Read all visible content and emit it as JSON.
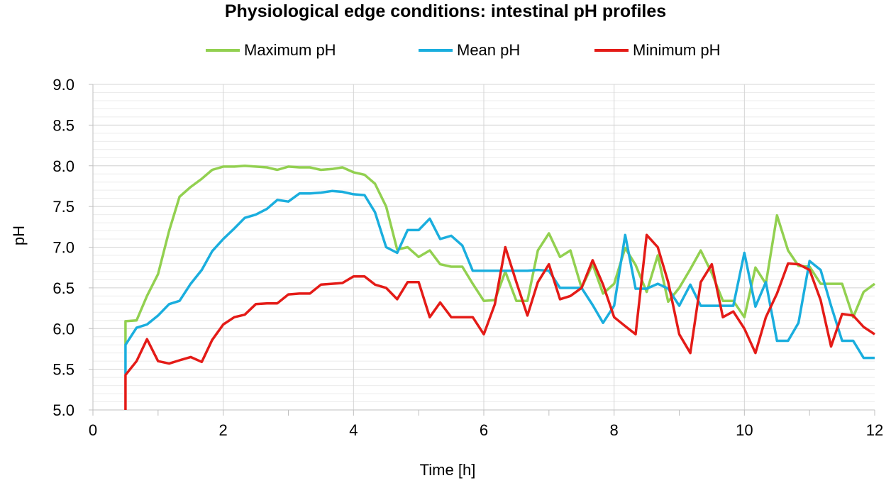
{
  "chart_data": {
    "type": "line",
    "title": "Physiological edge conditions: intestinal pH profiles",
    "xlabel": "Time [h]",
    "ylabel": "pH",
    "xlim": [
      0,
      12
    ],
    "ylim": [
      5.0,
      9.0
    ],
    "x_ticks": [
      "0",
      "2",
      "4",
      "6",
      "8",
      "10",
      "12"
    ],
    "y_ticks": [
      "5.0",
      "5.5",
      "6.0",
      "6.5",
      "7.0",
      "7.5",
      "8.0",
      "8.5",
      "9.0"
    ],
    "grid": true,
    "legend_position": "top",
    "series": [
      {
        "name": "Maximum pH",
        "color": "#92D050",
        "points": [
          [
            0.5,
            5.8
          ],
          [
            0.5,
            6.09
          ],
          [
            0.67,
            6.1
          ],
          [
            0.83,
            6.4
          ],
          [
            1.0,
            6.67
          ],
          [
            1.17,
            7.2
          ],
          [
            1.33,
            7.62
          ],
          [
            1.5,
            7.74
          ],
          [
            1.67,
            7.84
          ],
          [
            1.83,
            7.95
          ],
          [
            2.0,
            7.99
          ],
          [
            2.17,
            7.99
          ],
          [
            2.33,
            8.0
          ],
          [
            2.5,
            7.99
          ],
          [
            2.67,
            7.98
          ],
          [
            2.83,
            7.95
          ],
          [
            3.0,
            7.99
          ],
          [
            3.17,
            7.98
          ],
          [
            3.33,
            7.98
          ],
          [
            3.5,
            7.95
          ],
          [
            3.67,
            7.96
          ],
          [
            3.83,
            7.98
          ],
          [
            4.0,
            7.92
          ],
          [
            4.17,
            7.89
          ],
          [
            4.33,
            7.78
          ],
          [
            4.5,
            7.5
          ],
          [
            4.67,
            6.97
          ],
          [
            4.83,
            7.0
          ],
          [
            5.0,
            6.88
          ],
          [
            5.17,
            6.96
          ],
          [
            5.33,
            6.79
          ],
          [
            5.5,
            6.76
          ],
          [
            5.67,
            6.76
          ],
          [
            5.83,
            6.55
          ],
          [
            6.0,
            6.34
          ],
          [
            6.17,
            6.35
          ],
          [
            6.33,
            6.7
          ],
          [
            6.5,
            6.34
          ],
          [
            6.67,
            6.34
          ],
          [
            6.83,
            6.96
          ],
          [
            7.0,
            7.17
          ],
          [
            7.17,
            6.88
          ],
          [
            7.33,
            6.96
          ],
          [
            7.5,
            6.5
          ],
          [
            7.67,
            6.79
          ],
          [
            7.83,
            6.43
          ],
          [
            8.0,
            6.55
          ],
          [
            8.17,
            6.99
          ],
          [
            8.33,
            6.78
          ],
          [
            8.5,
            6.45
          ],
          [
            8.67,
            6.9
          ],
          [
            8.83,
            6.33
          ],
          [
            9.0,
            6.5
          ],
          [
            9.17,
            6.73
          ],
          [
            9.33,
            6.96
          ],
          [
            9.5,
            6.68
          ],
          [
            9.67,
            6.34
          ],
          [
            9.83,
            6.34
          ],
          [
            10.0,
            6.14
          ],
          [
            10.17,
            6.75
          ],
          [
            10.33,
            6.55
          ],
          [
            10.5,
            7.39
          ],
          [
            10.67,
            6.96
          ],
          [
            10.83,
            6.77
          ],
          [
            11.0,
            6.76
          ],
          [
            11.17,
            6.55
          ],
          [
            11.33,
            6.55
          ],
          [
            11.5,
            6.55
          ],
          [
            11.67,
            6.14
          ],
          [
            11.83,
            6.45
          ],
          [
            12.0,
            6.55
          ]
        ]
      },
      {
        "name": "Mean pH",
        "color": "#1AAEDE",
        "points": [
          [
            0.5,
            5.44
          ],
          [
            0.5,
            5.8
          ],
          [
            0.67,
            6.01
          ],
          [
            0.83,
            6.05
          ],
          [
            1.0,
            6.16
          ],
          [
            1.17,
            6.3
          ],
          [
            1.33,
            6.34
          ],
          [
            1.5,
            6.55
          ],
          [
            1.67,
            6.72
          ],
          [
            1.83,
            6.95
          ],
          [
            2.0,
            7.1
          ],
          [
            2.17,
            7.23
          ],
          [
            2.33,
            7.36
          ],
          [
            2.5,
            7.4
          ],
          [
            2.67,
            7.47
          ],
          [
            2.83,
            7.58
          ],
          [
            3.0,
            7.56
          ],
          [
            3.17,
            7.66
          ],
          [
            3.33,
            7.66
          ],
          [
            3.5,
            7.67
          ],
          [
            3.67,
            7.69
          ],
          [
            3.83,
            7.68
          ],
          [
            4.0,
            7.65
          ],
          [
            4.17,
            7.64
          ],
          [
            4.33,
            7.43
          ],
          [
            4.5,
            7.0
          ],
          [
            4.67,
            6.93
          ],
          [
            4.83,
            7.21
          ],
          [
            5.0,
            7.21
          ],
          [
            5.17,
            7.35
          ],
          [
            5.33,
            7.1
          ],
          [
            5.5,
            7.14
          ],
          [
            5.67,
            7.02
          ],
          [
            5.83,
            6.71
          ],
          [
            6.0,
            6.71
          ],
          [
            6.17,
            6.71
          ],
          [
            6.33,
            6.71
          ],
          [
            6.5,
            6.71
          ],
          [
            6.67,
            6.71
          ],
          [
            6.83,
            6.72
          ],
          [
            7.0,
            6.71
          ],
          [
            7.17,
            6.5
          ],
          [
            7.33,
            6.5
          ],
          [
            7.5,
            6.5
          ],
          [
            7.67,
            6.29
          ],
          [
            7.83,
            6.07
          ],
          [
            8.0,
            6.28
          ],
          [
            8.17,
            7.15
          ],
          [
            8.33,
            6.49
          ],
          [
            8.5,
            6.49
          ],
          [
            8.67,
            6.55
          ],
          [
            8.83,
            6.49
          ],
          [
            9.0,
            6.28
          ],
          [
            9.17,
            6.54
          ],
          [
            9.33,
            6.28
          ],
          [
            9.5,
            6.28
          ],
          [
            9.67,
            6.28
          ],
          [
            9.83,
            6.28
          ],
          [
            10.0,
            6.93
          ],
          [
            10.17,
            6.27
          ],
          [
            10.33,
            6.57
          ],
          [
            10.5,
            5.85
          ],
          [
            10.67,
            5.85
          ],
          [
            10.83,
            6.07
          ],
          [
            11.0,
            6.83
          ],
          [
            11.17,
            6.72
          ],
          [
            11.33,
            6.28
          ],
          [
            11.5,
            5.85
          ],
          [
            11.67,
            5.85
          ],
          [
            11.83,
            5.64
          ],
          [
            12.0,
            5.64
          ]
        ]
      },
      {
        "name": "Minimum pH",
        "color": "#E41B17",
        "points": [
          [
            0.5,
            5.0
          ],
          [
            0.5,
            5.43
          ],
          [
            0.67,
            5.6
          ],
          [
            0.83,
            5.87
          ],
          [
            1.0,
            5.6
          ],
          [
            1.17,
            5.57
          ],
          [
            1.33,
            5.61
          ],
          [
            1.5,
            5.65
          ],
          [
            1.67,
            5.59
          ],
          [
            1.83,
            5.86
          ],
          [
            2.0,
            6.05
          ],
          [
            2.17,
            6.14
          ],
          [
            2.33,
            6.17
          ],
          [
            2.5,
            6.3
          ],
          [
            2.67,
            6.31
          ],
          [
            2.83,
            6.31
          ],
          [
            3.0,
            6.42
          ],
          [
            3.17,
            6.43
          ],
          [
            3.33,
            6.43
          ],
          [
            3.5,
            6.54
          ],
          [
            3.67,
            6.55
          ],
          [
            3.83,
            6.56
          ],
          [
            4.0,
            6.64
          ],
          [
            4.17,
            6.64
          ],
          [
            4.33,
            6.54
          ],
          [
            4.5,
            6.5
          ],
          [
            4.67,
            6.36
          ],
          [
            4.83,
            6.57
          ],
          [
            5.0,
            6.57
          ],
          [
            5.17,
            6.14
          ],
          [
            5.33,
            6.32
          ],
          [
            5.5,
            6.14
          ],
          [
            5.67,
            6.14
          ],
          [
            5.83,
            6.14
          ],
          [
            6.0,
            5.93
          ],
          [
            6.17,
            6.3
          ],
          [
            6.33,
            7.0
          ],
          [
            6.5,
            6.57
          ],
          [
            6.67,
            6.16
          ],
          [
            6.83,
            6.57
          ],
          [
            7.0,
            6.79
          ],
          [
            7.17,
            6.36
          ],
          [
            7.33,
            6.4
          ],
          [
            7.5,
            6.5
          ],
          [
            7.67,
            6.84
          ],
          [
            7.83,
            6.54
          ],
          [
            8.0,
            6.14
          ],
          [
            8.17,
            6.03
          ],
          [
            8.33,
            5.93
          ],
          [
            8.5,
            7.15
          ],
          [
            8.67,
            7.0
          ],
          [
            8.83,
            6.57
          ],
          [
            9.0,
            5.93
          ],
          [
            9.17,
            5.7
          ],
          [
            9.33,
            6.57
          ],
          [
            9.5,
            6.79
          ],
          [
            9.67,
            6.14
          ],
          [
            9.83,
            6.21
          ],
          [
            10.0,
            6.0
          ],
          [
            10.17,
            5.7
          ],
          [
            10.33,
            6.14
          ],
          [
            10.5,
            6.43
          ],
          [
            10.67,
            6.8
          ],
          [
            10.83,
            6.79
          ],
          [
            11.0,
            6.72
          ],
          [
            11.17,
            6.35
          ],
          [
            11.33,
            5.78
          ],
          [
            11.5,
            6.18
          ],
          [
            11.67,
            6.16
          ],
          [
            11.83,
            6.02
          ],
          [
            12.0,
            5.93
          ]
        ]
      }
    ]
  }
}
